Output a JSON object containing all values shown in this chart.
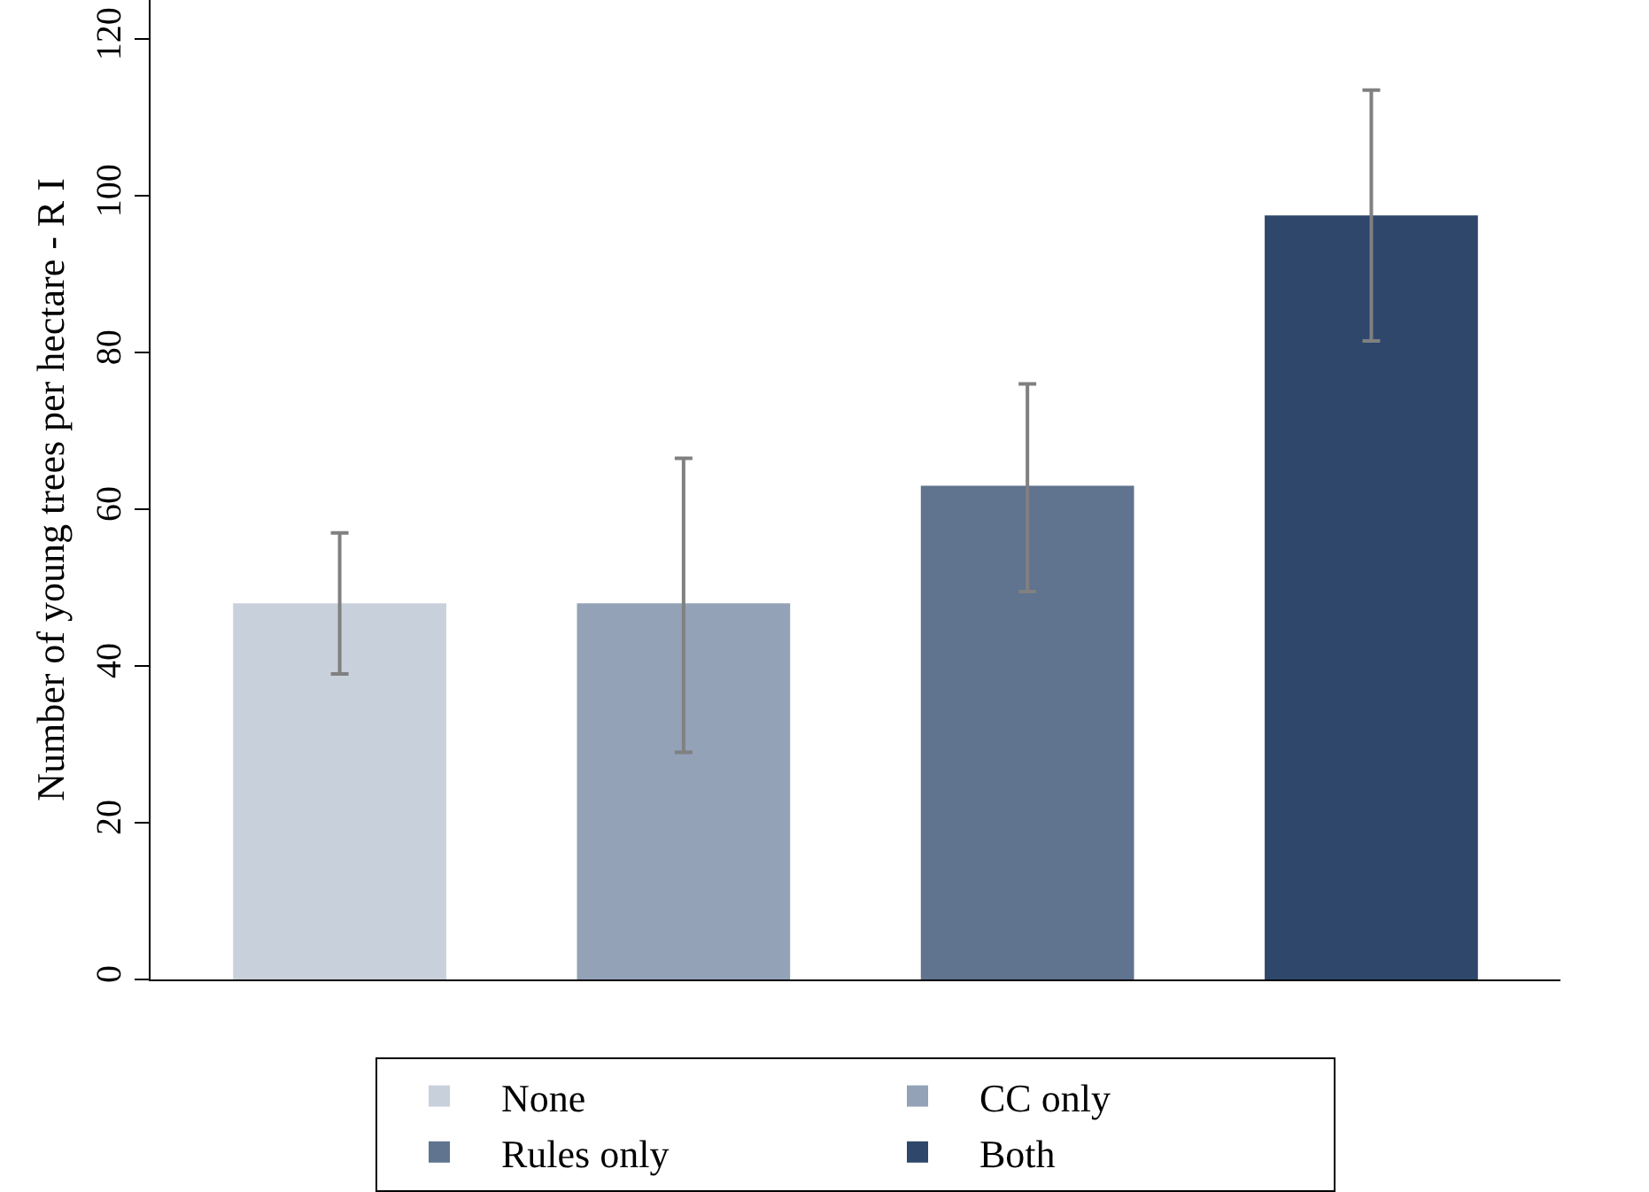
{
  "chart_data": {
    "type": "bar",
    "ylabel": "Number of young trees per hectare - R I",
    "categories": [
      null,
      null,
      null,
      null
    ],
    "series": [
      {
        "name": "None",
        "color": "#c8d0db",
        "values": [
          48,
          null,
          null,
          null
        ],
        "errors": [
          [
            39,
            57
          ],
          null,
          null,
          null
        ]
      },
      {
        "name": "CC only",
        "color": "#93a2b6",
        "values": [
          null,
          48,
          null,
          null
        ],
        "errors": [
          null,
          [
            29,
            66.5
          ],
          null,
          null
        ]
      },
      {
        "name": "Rules only",
        "color": "#60738f",
        "values": [
          null,
          null,
          63,
          null
        ],
        "errors": [
          null,
          null,
          [
            49.5,
            76
          ],
          null
        ]
      },
      {
        "name": "Both",
        "color": "#2e476b",
        "values": [
          null,
          null,
          null,
          97.5
        ],
        "errors": [
          null,
          null,
          null,
          [
            81.5,
            113.5
          ]
        ]
      }
    ],
    "ylim": [
      0,
      125
    ],
    "yticks": [
      0,
      20,
      40,
      60,
      80,
      100,
      120
    ],
    "grid": false,
    "legend": "bottom",
    "tick_labels": "y"
  }
}
